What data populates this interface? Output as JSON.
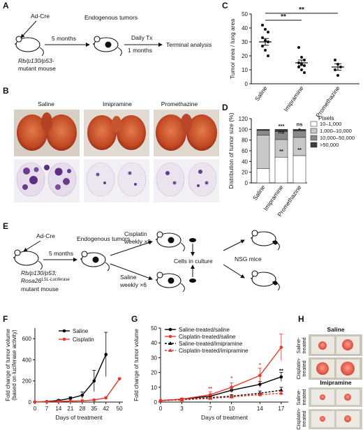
{
  "panels": {
    "A": "A",
    "B": "B",
    "C": "C",
    "D": "D",
    "E": "E",
    "F": "F",
    "G": "G",
    "H": "H"
  },
  "panel_a": {
    "adcre": "Ad-Cre",
    "months": "5 months",
    "endo": "Endogenous tumors",
    "daily": "Daily Tx",
    "one_month": "1 months",
    "terminal": "Terminal analysis",
    "mouse_line1": "Rb/p130/p53-",
    "mouse_line2": "mutant mouse"
  },
  "panel_b": {
    "labels": [
      "Saline",
      "Imipramine",
      "Promethazine"
    ]
  },
  "panel_e": {
    "adcre": "Ad-Cre",
    "months": "5 months",
    "endo": "Endogenous tumors",
    "cisplatin1": "Cisplatin",
    "cisplatin2": "weekly ×8",
    "saline1": "Saline",
    "saline2": "weekly ×6",
    "cells": "Cells in culture",
    "nsg": "NSG mice",
    "mouse_line1": "Rb/p130/p53;",
    "mouse_line2a": "Rosa26",
    "mouse_line2b": "LSL-Luciferase",
    "mouse_line3": "mutant mouse"
  },
  "panel_h": {
    "saline": "Saline",
    "imipramine": "Imipramine",
    "saline_treated": "Saline-\ntreated",
    "cisplatin_treated": "Cisplatin-\ntreated"
  },
  "chart_data": [
    {
      "id": "C",
      "type": "scatter",
      "ylabel": "Tumor area / lung area",
      "categories": [
        "Saline",
        "Imipramine",
        "Promethazine"
      ],
      "ylim": [
        0,
        50
      ],
      "yticks": [
        0,
        10,
        20,
        30,
        40,
        50
      ],
      "points": [
        [
          42,
          39,
          37,
          33,
          31,
          30,
          27,
          24,
          20
        ],
        [
          26,
          19,
          17,
          15,
          14,
          13,
          12,
          10,
          8
        ],
        [
          17,
          14,
          12,
          10,
          6
        ]
      ],
      "means": [
        30,
        15,
        12
      ],
      "sem": [
        2.4,
        2.0,
        2.3
      ],
      "significance": [
        "**",
        "**"
      ]
    },
    {
      "id": "D",
      "type": "bar",
      "ylabel": "Distribution of tumor size (%)",
      "categories": [
        "Saline",
        "Imipramine",
        "Promethazine"
      ],
      "ylim": [
        0,
        120
      ],
      "yticks": [
        0,
        20,
        40,
        60,
        80,
        100,
        120
      ],
      "legend_title": "Pixels",
      "series": [
        {
          "name": "10–1,000",
          "values": [
            27,
            48,
            51
          ],
          "color": "#ffffff"
        },
        {
          "name": "1,000–10,000",
          "values": [
            62,
            33,
            34
          ],
          "color": "#c8c8c8"
        },
        {
          "name": "10,000–50,000",
          "values": [
            9,
            15,
            12
          ],
          "color": "#8a8a8a"
        },
        {
          "name": ">50,000",
          "values": [
            2,
            4,
            3
          ],
          "color": "#3a3a3a"
        }
      ],
      "annotations": [
        {
          "cat": 1,
          "y": 103,
          "text": "***"
        },
        {
          "cat": 1,
          "y": 92,
          "text": "ns"
        },
        {
          "cat": 1,
          "y": 56,
          "text": "**"
        },
        {
          "cat": 2,
          "y": 106,
          "text": "ns"
        },
        {
          "cat": 2,
          "y": 96,
          "text": "*"
        },
        {
          "cat": 2,
          "y": 59,
          "text": "**"
        }
      ]
    },
    {
      "id": "F",
      "type": "line",
      "xlabel": "Days of treatment",
      "ylabel": "Fold change of tumor volume\n(based on luciferase activity)",
      "xlim": [
        0,
        52
      ],
      "ylim": [
        0,
        700
      ],
      "xticks": [
        0,
        7,
        14,
        21,
        28,
        35,
        42,
        50
      ],
      "yticks": [
        0,
        200,
        400,
        600
      ],
      "series": [
        {
          "name": "Saline",
          "color": "#000000",
          "x": [
            0,
            7,
            14,
            21,
            28,
            35,
            42
          ],
          "y": [
            1,
            5,
            15,
            35,
            65,
            200,
            450
          ],
          "err": [
            0,
            3,
            8,
            15,
            30,
            100,
            210
          ]
        },
        {
          "name": "Cisplatin",
          "color": "#e8392a",
          "x": [
            0,
            7,
            14,
            21,
            28,
            35,
            42,
            50
          ],
          "y": [
            1,
            3,
            6,
            9,
            12,
            20,
            40,
            220
          ],
          "err": [
            0,
            1,
            2,
            3,
            4,
            6,
            10,
            10
          ]
        }
      ]
    },
    {
      "id": "G",
      "type": "line",
      "xlabel": "Days of treatment",
      "ylabel": "Fold change of tumor volume",
      "xlim": [
        0,
        18
      ],
      "ylim": [
        0,
        50
      ],
      "xticks": [
        0,
        3,
        7,
        10,
        14,
        17
      ],
      "yticks": [
        0,
        10,
        20,
        30,
        40,
        50
      ],
      "series": [
        {
          "name": "Saline-treated/saline",
          "color": "#000000",
          "dash": false,
          "x": [
            0,
            3,
            7,
            10,
            14,
            17
          ],
          "y": [
            1,
            2,
            4,
            8,
            12,
            17
          ],
          "err": [
            0,
            0.5,
            1,
            1.5,
            2,
            3
          ]
        },
        {
          "name": "Cisplatin-treated/saline",
          "color": "#e8392a",
          "dash": false,
          "x": [
            0,
            3,
            7,
            10,
            14,
            17
          ],
          "y": [
            1,
            2,
            5,
            10,
            18,
            37
          ],
          "err": [
            0,
            0.5,
            2,
            3,
            5,
            9
          ]
        },
        {
          "name": "Saline-treated/imipramine",
          "color": "#000000",
          "dash": true,
          "x": [
            0,
            3,
            7,
            10,
            14,
            17
          ],
          "y": [
            1,
            1.5,
            3,
            4,
            6,
            8
          ],
          "err": [
            0,
            0.3,
            0.8,
            1,
            1.5,
            2
          ]
        },
        {
          "name": "Cisplatin-treated/imipramine",
          "color": "#e8392a",
          "dash": true,
          "x": [
            0,
            3,
            7,
            10,
            14,
            17
          ],
          "y": [
            1,
            1.5,
            2.5,
            3.5,
            5,
            6
          ],
          "err": [
            0,
            0.3,
            0.6,
            0.8,
            1.2,
            1.5
          ]
        }
      ],
      "annotations": [
        {
          "x": 7,
          "y": 8,
          "text": "**",
          "color": "#e8392a"
        },
        {
          "x": 10,
          "y": 15,
          "text": "*",
          "color": "#e8392a"
        },
        {
          "x": 14,
          "y": 24,
          "text": "*",
          "color": "#e8392a"
        },
        {
          "x": 17,
          "y": 20,
          "text": "**",
          "color": "#000000"
        }
      ]
    }
  ]
}
